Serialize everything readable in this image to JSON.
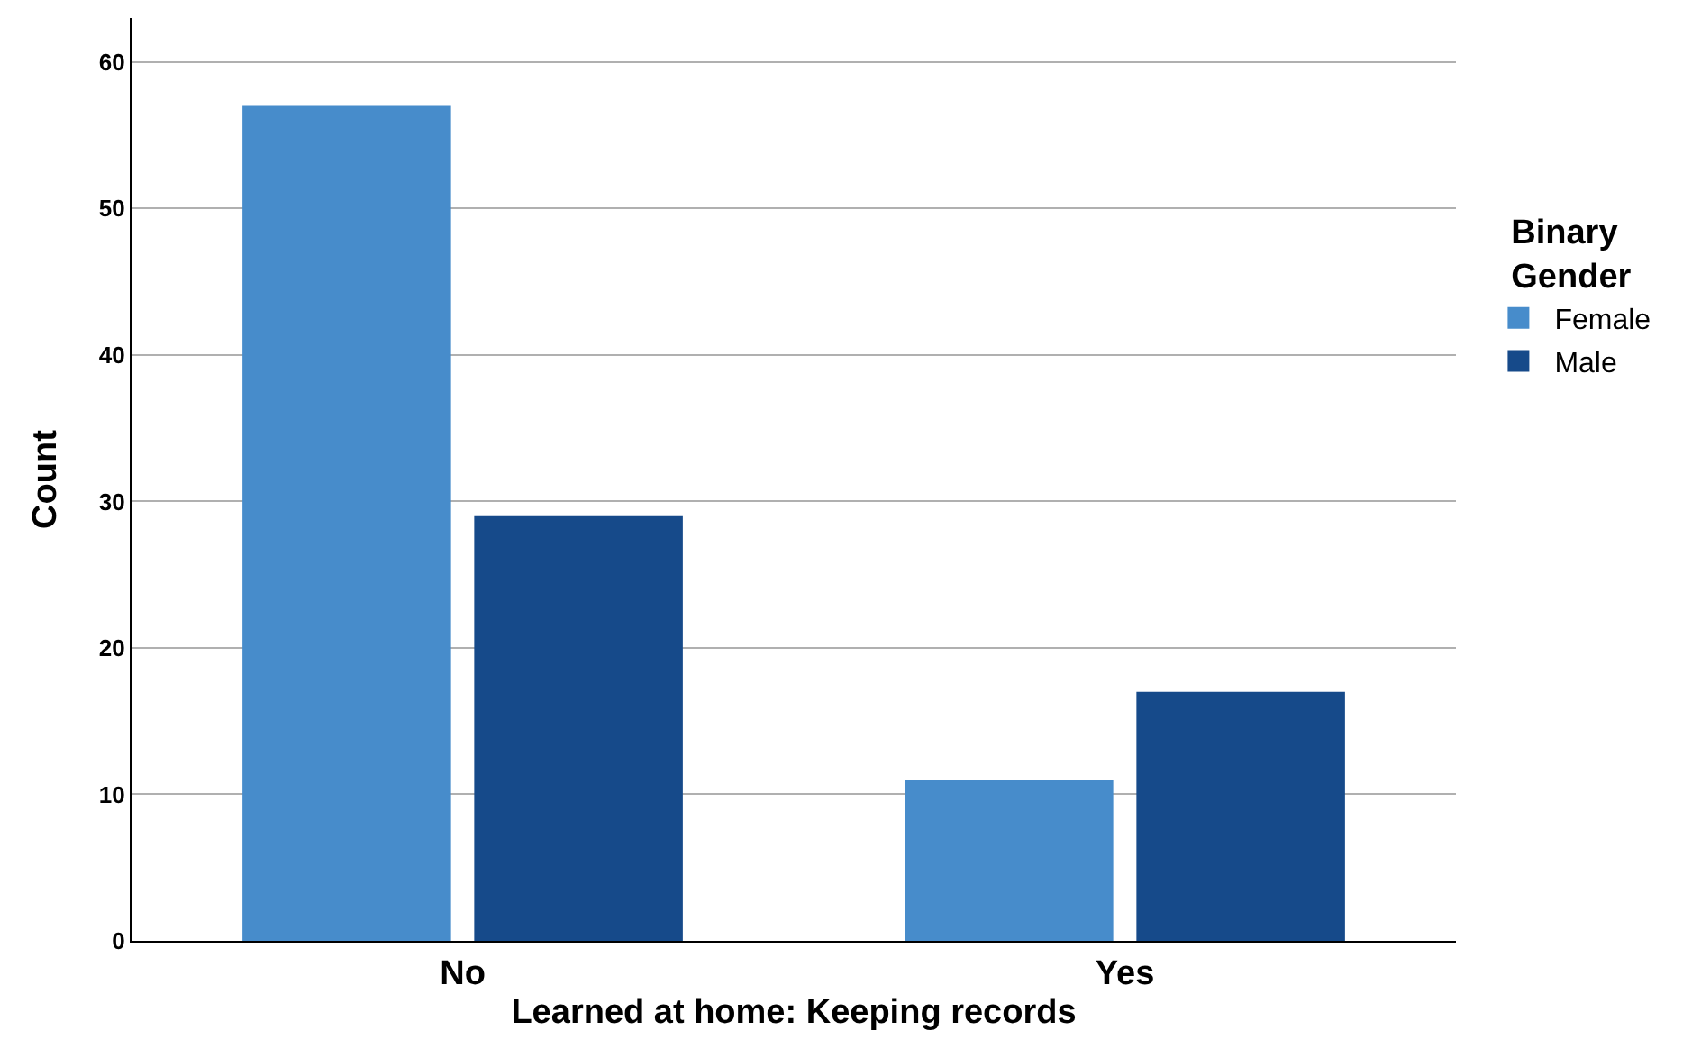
{
  "chart_data": {
    "type": "bar",
    "xlabel": "Learned at home: Keeping records",
    "ylabel": "Count",
    "legend_title": "Binary Gender",
    "categories": [
      "No",
      "Yes"
    ],
    "series": [
      {
        "name": "Female",
        "color": "#478ccb",
        "values": [
          57,
          11
        ]
      },
      {
        "name": "Male",
        "color": "#164a8a",
        "values": [
          29,
          17
        ]
      }
    ],
    "ylim": [
      0,
      63
    ],
    "yticks": [
      0,
      10,
      20,
      30,
      40,
      50,
      60
    ],
    "grid": "y",
    "legend": "right"
  }
}
